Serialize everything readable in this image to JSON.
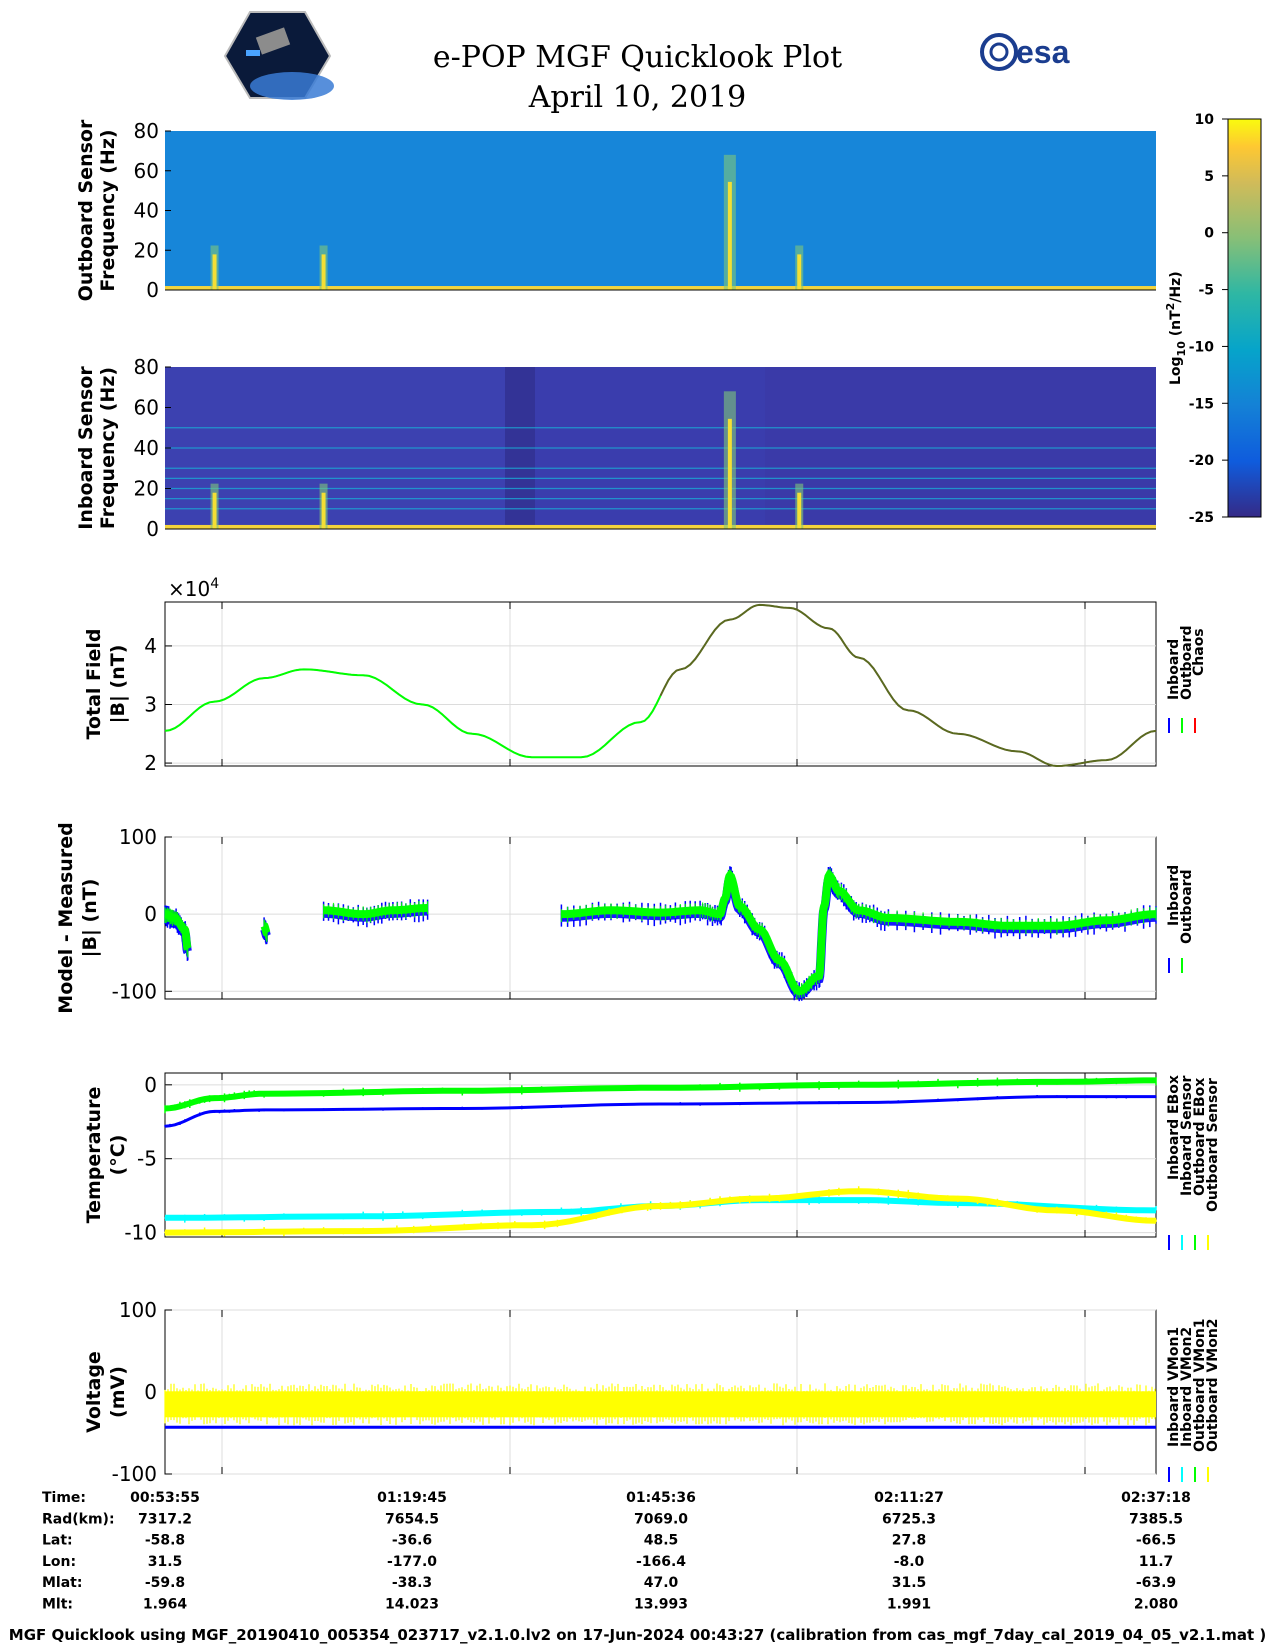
{
  "header": {
    "title": "e-POP MGF Quicklook Plot",
    "date": "April 10, 2019",
    "left_logo": "cassiope-mission-logo",
    "right_logo_text": "esa"
  },
  "colors": {
    "inboard": "#0000ff",
    "outboard": "#00ff00",
    "chaos": "#ff0000",
    "cyan": "#00ffff",
    "yellow": "#ffff00",
    "grid": "#dcdcdc"
  },
  "chart_data": [
    {
      "type": "heatmap",
      "id": "spec-outboard",
      "ylabel": [
        "Outboard Sensor",
        "Frequency (Hz)"
      ],
      "ylim": [
        0,
        80
      ],
      "yticks": [
        "0",
        "20",
        "40",
        "60",
        "80"
      ],
      "dominant_level_log10": -12,
      "baseline_level_log10": 8,
      "bursts_rel_time": [
        0.05,
        0.16,
        0.57,
        0.64
      ],
      "harmonics_hz": []
    },
    {
      "type": "heatmap",
      "id": "spec-inboard",
      "ylabel": [
        "Inboard Sensor",
        "Frequency (Hz)"
      ],
      "ylim": [
        0,
        80
      ],
      "yticks": [
        "0",
        "20",
        "40",
        "60",
        "80"
      ],
      "dominant_level_log10": -22,
      "baseline_level_log10": 8,
      "bursts_rel_time": [
        0.05,
        0.16,
        0.57,
        0.64
      ],
      "harmonics_hz": [
        10,
        15,
        20,
        25,
        30,
        40,
        50
      ]
    },
    {
      "type": "colorbar",
      "id": "colorbar",
      "label": "Log10 (nT2/Hz)",
      "label_main": "Log",
      "label_sub": "10",
      "label_unit": " (nT",
      "label_sup": "2",
      "label_tail": "/Hz)",
      "ylim": [
        -25,
        10
      ],
      "ticks": [
        "10",
        "5",
        "0",
        "-5",
        "-10",
        "-15",
        "-20",
        "-25"
      ]
    },
    {
      "type": "line",
      "id": "total-field",
      "ylabel": [
        "Total Field",
        "|B| (nT)"
      ],
      "scale_label": "×10",
      "scale_exp": "4",
      "ylim": [
        1.95,
        4.75
      ],
      "yticks": [
        "2",
        "3",
        "4"
      ],
      "series": [
        {
          "name": "Inboard",
          "color_key": "inboard"
        },
        {
          "name": "Outboard",
          "color_key": "outboard"
        },
        {
          "name": "Chaos",
          "color_key": "chaos"
        }
      ],
      "x": [
        0,
        0.05,
        0.1,
        0.14,
        0.2,
        0.26,
        0.31,
        0.37,
        0.42,
        0.48,
        0.52,
        0.57,
        0.6,
        0.63,
        0.67,
        0.7,
        0.75,
        0.8,
        0.86,
        0.9,
        0.95,
        1.0
      ],
      "values": [
        2.55,
        3.05,
        3.45,
        3.6,
        3.5,
        3.0,
        2.5,
        2.1,
        2.1,
        2.7,
        3.6,
        4.45,
        4.7,
        4.65,
        4.3,
        3.8,
        2.9,
        2.5,
        2.2,
        1.95,
        2.05,
        2.55
      ]
    },
    {
      "type": "line",
      "id": "model-measured",
      "ylabel": [
        "Model - Measured",
        "|B| (nT)"
      ],
      "ylim": [
        -110,
        100
      ],
      "yticks": [
        "-100",
        "0",
        "100"
      ],
      "series": [
        {
          "name": "Inboard",
          "color_key": "inboard"
        },
        {
          "name": "Outboard",
          "color_key": "outboard"
        }
      ],
      "segments": [
        {
          "x": [
            0.0,
            0.01,
            0.02,
            0.023
          ],
          "values": [
            0,
            -5,
            -20,
            -45
          ]
        },
        {
          "x": [
            0.1,
            0.103
          ],
          "values": [
            -15,
            -25
          ]
        },
        {
          "x": [
            0.16,
            0.2,
            0.23,
            0.265
          ],
          "values": [
            5,
            0,
            5,
            8
          ]
        },
        {
          "x": [
            0.4,
            0.45,
            0.5,
            0.54,
            0.56,
            0.565,
            0.57,
            0.58,
            0.6,
            0.62,
            0.64,
            0.66,
            0.665,
            0.67,
            0.68,
            0.7,
            0.73,
            0.8,
            0.85,
            0.9,
            0.95,
            1.0
          ],
          "values": [
            0,
            5,
            2,
            5,
            0,
            20,
            50,
            10,
            -20,
            -60,
            -100,
            -80,
            10,
            50,
            30,
            5,
            -5,
            -10,
            -15,
            -15,
            -8,
            0
          ]
        }
      ]
    },
    {
      "type": "line",
      "id": "temperature",
      "ylabel": [
        "Temperature",
        "(°C)"
      ],
      "ylim": [
        -10.3,
        0.8
      ],
      "yticks": [
        "-10",
        "-5",
        "0"
      ],
      "series": [
        {
          "name": "Inboard EBox",
          "color_key": "inboard",
          "x": [
            0,
            0.05,
            0.1,
            0.3,
            0.5,
            0.7,
            0.9,
            1.0
          ],
          "values": [
            -2.8,
            -1.8,
            -1.7,
            -1.6,
            -1.3,
            -1.2,
            -0.8,
            -0.8
          ]
        },
        {
          "name": "Inboard Sensor",
          "color_key": "cyan",
          "x": [
            0,
            0.2,
            0.4,
            0.5,
            0.6,
            0.7,
            0.8,
            1.0
          ],
          "values": [
            -9.0,
            -8.9,
            -8.6,
            -8.2,
            -7.8,
            -7.8,
            -8.0,
            -8.5
          ]
        },
        {
          "name": "Outboard EBox",
          "color_key": "outboard",
          "x": [
            0,
            0.05,
            0.1,
            0.3,
            0.5,
            0.7,
            0.9,
            1.0
          ],
          "values": [
            -1.6,
            -0.9,
            -0.6,
            -0.4,
            -0.2,
            0.0,
            0.2,
            0.3
          ]
        },
        {
          "name": "Outboard Sensor",
          "color_key": "yellow",
          "x": [
            0,
            0.2,
            0.37,
            0.5,
            0.6,
            0.7,
            0.8,
            0.9,
            1.0
          ],
          "values": [
            -10.0,
            -9.9,
            -9.5,
            -8.2,
            -7.7,
            -7.2,
            -7.7,
            -8.5,
            -9.2
          ]
        }
      ]
    },
    {
      "type": "line",
      "id": "voltage",
      "ylabel": [
        "Voltage",
        "(mV)"
      ],
      "ylim": [
        -100,
        100
      ],
      "yticks": [
        "-100",
        "0",
        "100"
      ],
      "series": [
        {
          "name": "Inboard VMon1",
          "color_key": "inboard",
          "level": -43
        },
        {
          "name": "Inboard VMon2",
          "color_key": "cyan",
          "level": -15
        },
        {
          "name": "Outboard VMon1",
          "color_key": "outboard",
          "level": -5
        },
        {
          "name": "Outboard VMon2",
          "color_key": "yellow",
          "level": -15
        }
      ]
    }
  ],
  "table": {
    "labels": [
      "Time:",
      "Rad(km):",
      "Lat:",
      "Lon:",
      "Mlat:",
      "Mlt:"
    ],
    "columns": [
      [
        "00:53:55",
        "7317.2",
        "-58.8",
        "31.5",
        "-59.8",
        "1.964"
      ],
      [
        "01:19:45",
        "7654.5",
        "-36.6",
        "-177.0",
        "-38.3",
        "14.023"
      ],
      [
        "01:45:36",
        "7069.0",
        "48.5",
        "-166.4",
        "47.0",
        "13.993"
      ],
      [
        "02:11:27",
        "6725.3",
        "27.8",
        "-8.0",
        "31.5",
        "1.991"
      ],
      [
        "02:37:18",
        "7385.5",
        "-66.5",
        "11.7",
        "-63.9",
        "2.080"
      ]
    ]
  },
  "footer": "MGF Quicklook using MGF_20190410_005354_023717_v2.1.0.lv2 on 17-Jun-2024 00:43:27 (calibration from cas_mgf_7day_cal_2019_04_05_v2.1.mat )"
}
